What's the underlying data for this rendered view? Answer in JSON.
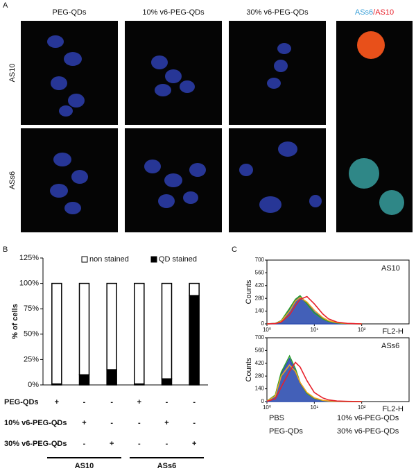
{
  "panel_a": {
    "letter": "A",
    "columns": [
      "PEG-QDs",
      "10% v6-PEG-QDs",
      "30% v6-PEG-QDs"
    ],
    "overlay_label": {
      "blue": "ASs6",
      "red": "/AS10"
    },
    "rows": [
      "AS10",
      "ASs6"
    ]
  },
  "panel_letters": [
    "B",
    "C"
  ],
  "chart_data": [
    {
      "type": "stacked-bar",
      "ylabel": "% of cells",
      "categories": [
        null,
        null,
        null,
        null,
        null,
        null
      ],
      "series": [
        {
          "name": "QD stained",
          "color": "#000000",
          "values": [
            1,
            10,
            15,
            1,
            6,
            88
          ]
        },
        {
          "name": "non stained",
          "color": "#ffffff",
          "values": [
            99,
            90,
            85,
            99,
            94,
            12
          ]
        }
      ],
      "ylim": [
        0,
        125
      ],
      "yticks": [
        {
          "value": 0,
          "label": "0%"
        },
        {
          "value": 25,
          "label": "25%"
        },
        {
          "value": 50,
          "label": "50%"
        },
        {
          "value": 75,
          "label": "75%"
        },
        {
          "value": 100,
          "label": "100%"
        },
        {
          "value": 125,
          "label": "125%"
        }
      ],
      "treatments": [
        {
          "label": "PEG-QDs",
          "cells": [
            "+",
            "-",
            "-",
            "+",
            "-",
            "-"
          ]
        },
        {
          "label": "10% v6-PEG-QDs",
          "cells": [
            "-",
            "+",
            "-",
            "-",
            "+",
            "-"
          ]
        },
        {
          "label": "30% v6-PEG-QDs",
          "cells": [
            "-",
            "-",
            "+",
            "-",
            "-",
            "+"
          ]
        }
      ],
      "groups": [
        "AS10",
        "ASs6"
      ]
    },
    {
      "type": "histogram-line",
      "title": "AS10",
      "ylabel": "Counts",
      "xlabel": "FL2-H",
      "log_x": true,
      "x": [
        1,
        1.5,
        2,
        3,
        4,
        5,
        7,
        10,
        15,
        20,
        30,
        50,
        100
      ],
      "series": [
        {
          "name": "PBS",
          "color": "#2f4fb0",
          "filled": true,
          "values": [
            0,
            5,
            30,
            150,
            260,
            300,
            230,
            130,
            60,
            30,
            12,
            3,
            0
          ]
        },
        {
          "name": "PEG-QDs",
          "color": "#2ca02c",
          "values": [
            0,
            5,
            35,
            170,
            270,
            310,
            220,
            120,
            55,
            28,
            10,
            3,
            0
          ]
        },
        {
          "name": "10% v6-PEG-QDs",
          "color": "#f0a020",
          "values": [
            0,
            4,
            30,
            140,
            250,
            290,
            240,
            150,
            70,
            35,
            14,
            4,
            0
          ]
        },
        {
          "name": "30% v6-PEG-QDs",
          "color": "#e8202a",
          "values": [
            0,
            3,
            20,
            100,
            200,
            270,
            300,
            220,
            110,
            55,
            20,
            5,
            0
          ]
        }
      ],
      "xlim": [
        1,
        1000
      ],
      "xticks": [
        {
          "value": 1,
          "label": "10⁰"
        },
        {
          "value": 10,
          "label": "10¹"
        },
        {
          "value": 100,
          "label": "10²"
        }
      ],
      "ylim": [
        0,
        700
      ],
      "yticks": [
        0,
        140,
        280,
        420,
        560,
        700
      ]
    },
    {
      "type": "histogram-line",
      "title": "ASs6",
      "ylabel": "Counts",
      "xlabel": "FL2-H",
      "log_x": true,
      "x": [
        1,
        1.5,
        2,
        3,
        4,
        5,
        7,
        10,
        15,
        20,
        30,
        50,
        100
      ],
      "series": [
        {
          "color": "#2f4fb0",
          "filled": true,
          "values": [
            5,
            60,
            300,
            470,
            330,
            200,
            90,
            35,
            12,
            5,
            2,
            0,
            0
          ]
        },
        {
          "color": "#2ca02c",
          "values": [
            5,
            70,
            320,
            500,
            360,
            210,
            90,
            35,
            12,
            5,
            2,
            0,
            0
          ]
        },
        {
          "color": "#f0a020",
          "values": [
            5,
            60,
            280,
            400,
            330,
            210,
            100,
            40,
            14,
            6,
            2,
            0,
            0
          ]
        },
        {
          "color": "#e8202a",
          "values": [
            3,
            30,
            160,
            330,
            430,
            380,
            230,
            100,
            40,
            18,
            6,
            2,
            0
          ]
        }
      ],
      "xlim": [
        1,
        1000
      ],
      "xticks": [
        {
          "value": 1,
          "label": "10⁰"
        },
        {
          "value": 10,
          "label": "10¹"
        },
        {
          "value": 100,
          "label": "10²"
        }
      ],
      "ylim": [
        0,
        700
      ],
      "yticks": [
        0,
        140,
        280,
        420,
        560,
        700
      ]
    }
  ]
}
